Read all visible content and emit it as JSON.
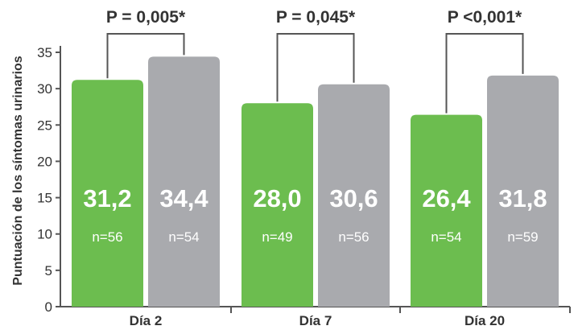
{
  "chart_data": {
    "type": "bar",
    "ylabel": "Puntuación de los síntomas urinarios",
    "ylim": [
      0,
      35
    ],
    "yticks": [
      0,
      5,
      10,
      15,
      20,
      25,
      30,
      35
    ],
    "categories": [
      "Día 2",
      "Día 7",
      "Día 20"
    ],
    "series": [
      {
        "color": "#6cbd4f",
        "values": [
          31.2,
          28.0,
          26.4
        ],
        "value_labels": [
          "31,2",
          "28,0",
          "26,4"
        ],
        "n_labels": [
          "n=56",
          "n=49",
          "n=54"
        ]
      },
      {
        "color": "#a9aaae",
        "values": [
          34.4,
          30.6,
          31.8
        ],
        "value_labels": [
          "34,4",
          "30,6",
          "31,8"
        ],
        "n_labels": [
          "n=54",
          "n=56",
          "n=59"
        ]
      }
    ],
    "p_values": [
      "P = 0,005*",
      "P = 0,045*",
      "P <0,001*"
    ],
    "grid": false,
    "legend": "none"
  }
}
